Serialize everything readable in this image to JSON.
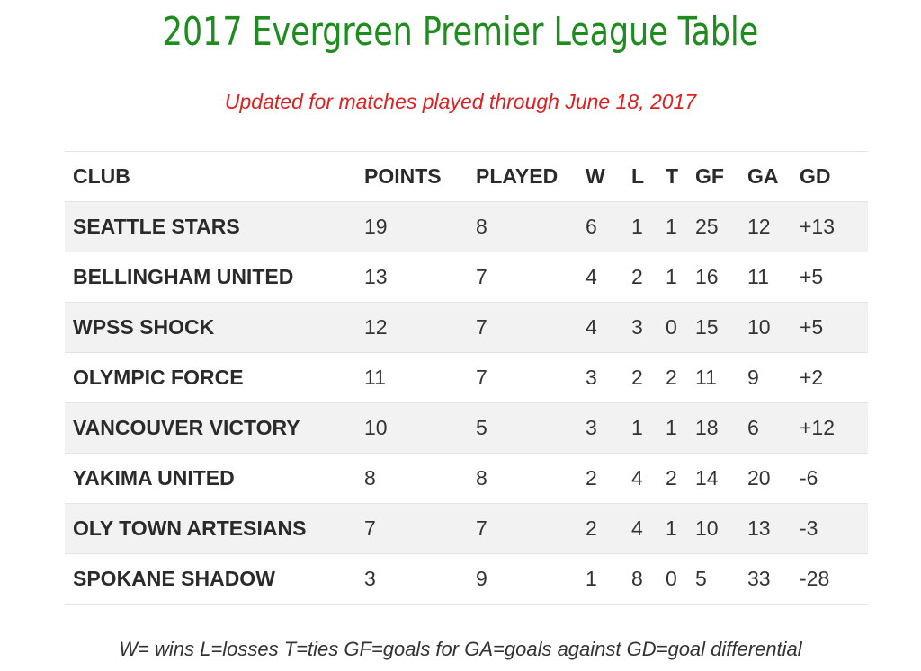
{
  "title": "2017 Evergreen Premier League Table",
  "subtitle": "Updated for matches played through June 18, 2017",
  "colors": {
    "title": "#1f8c1f",
    "subtitle": "#e02020",
    "row_stripe": "#f2f2f2"
  },
  "table": {
    "headers": {
      "club": "CLUB",
      "points": "POINTS",
      "played": "PLAYED",
      "w": "W",
      "l": "L",
      "t": "T",
      "gf": "GF",
      "ga": "GA",
      "gd": "GD"
    },
    "rows": [
      {
        "club": "SEATTLE STARS",
        "points": "19",
        "played": "8",
        "w": "6",
        "l": "1",
        "t": "1",
        "gf": "25",
        "ga": "12",
        "gd": "+13"
      },
      {
        "club": "BELLINGHAM UNITED",
        "points": "13",
        "played": "7",
        "w": "4",
        "l": "2",
        "t": "1",
        "gf": "16",
        "ga": "11",
        "gd": "+5"
      },
      {
        "club": "WPSS SHOCK",
        "points": "12",
        "played": "7",
        "w": "4",
        "l": "3",
        "t": "0",
        "gf": "15",
        "ga": "10",
        "gd": "+5"
      },
      {
        "club": "OLYMPIC FORCE",
        "points": "11",
        "played": "7",
        "w": "3",
        "l": "2",
        "t": "2",
        "gf": "11",
        "ga": "9",
        "gd": "+2"
      },
      {
        "club": "VANCOUVER VICTORY",
        "points": "10",
        "played": "5",
        "w": "3",
        "l": "1",
        "t": "1",
        "gf": "18",
        "ga": "6",
        "gd": "+12"
      },
      {
        "club": "YAKIMA UNITED",
        "points": "8",
        "played": "8",
        "w": "2",
        "l": "4",
        "t": "2",
        "gf": "14",
        "ga": "20",
        "gd": "-6"
      },
      {
        "club": "OLY TOWN ARTESIANS",
        "points": "7",
        "played": "7",
        "w": "2",
        "l": "4",
        "t": "1",
        "gf": "10",
        "ga": "13",
        "gd": "-3"
      },
      {
        "club": "SPOKANE SHADOW",
        "points": "3",
        "played": "9",
        "w": "1",
        "l": "8",
        "t": "0",
        "gf": "5",
        "ga": "33",
        "gd": "-28"
      }
    ]
  },
  "legend": "W= wins L=losses T=ties GF=goals for GA=goals against GD=goal differential"
}
